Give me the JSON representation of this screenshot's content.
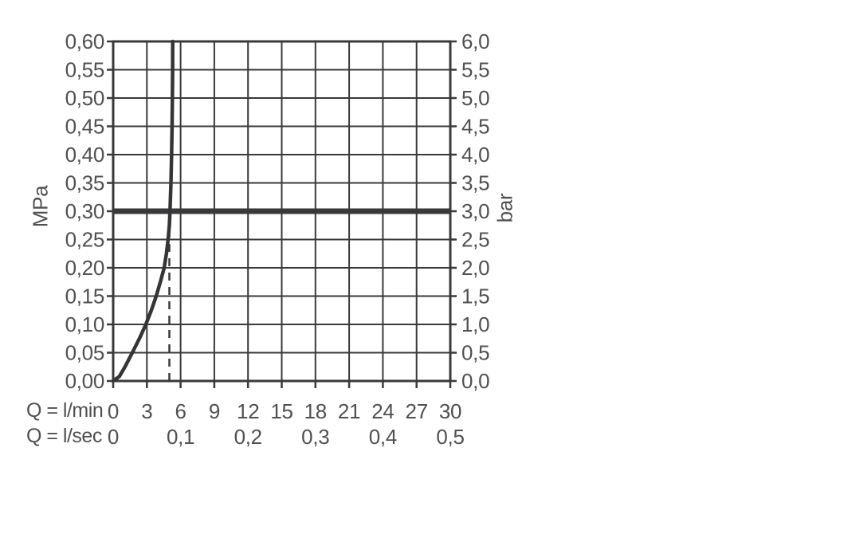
{
  "chart_data": {
    "type": "line",
    "title": "",
    "x_axis": {
      "xlim": [
        0,
        30
      ],
      "grid_step_lmin": 3,
      "rows": [
        {
          "label": "Q = l/min",
          "ticks": [
            {
              "x": 0,
              "t": "0"
            },
            {
              "x": 3,
              "t": "3"
            },
            {
              "x": 6,
              "t": "6"
            },
            {
              "x": 9,
              "t": "9"
            },
            {
              "x": 12,
              "t": "12"
            },
            {
              "x": 15,
              "t": "15"
            },
            {
              "x": 18,
              "t": "18"
            },
            {
              "x": 21,
              "t": "21"
            },
            {
              "x": 24,
              "t": "24"
            },
            {
              "x": 27,
              "t": "27"
            },
            {
              "x": 30,
              "t": "30"
            }
          ]
        },
        {
          "label": "Q = l/sec",
          "ticks": [
            {
              "x": 0,
              "t": "0"
            },
            {
              "x": 6,
              "t": "0,1"
            },
            {
              "x": 12,
              "t": "0,2"
            },
            {
              "x": 18,
              "t": "0,3"
            },
            {
              "x": 24,
              "t": "0,4"
            },
            {
              "x": 30,
              "t": "0,5"
            }
          ]
        }
      ]
    },
    "y_axis_left": {
      "label": "MPa",
      "ylim": [
        0,
        0.6
      ],
      "step": 0.05,
      "tick_labels": [
        "0,00",
        "0,05",
        "0,10",
        "0,15",
        "0,20",
        "0,25",
        "0,30",
        "0,35",
        "0,40",
        "0,45",
        "0,50",
        "0,55",
        "0,60"
      ]
    },
    "y_axis_right": {
      "label": "bar",
      "tick_labels": [
        "0,0",
        "0,5",
        "1,0",
        "1,5",
        "2,0",
        "2,5",
        "3,0",
        "3,5",
        "4,0",
        "4,5",
        "5,0",
        "5,5",
        "6,0"
      ]
    },
    "series": [
      {
        "name": "flow-rate-curve",
        "points": [
          [
            0,
            0
          ],
          [
            0.55,
            0.008
          ],
          [
            1.05,
            0.025
          ],
          [
            1.7,
            0.05
          ],
          [
            2.33,
            0.075
          ],
          [
            2.91,
            0.1
          ],
          [
            3.4,
            0.125
          ],
          [
            3.83,
            0.15
          ],
          [
            4.2,
            0.175
          ],
          [
            4.54,
            0.2
          ],
          [
            4.74,
            0.225
          ],
          [
            4.89,
            0.25
          ],
          [
            5.0,
            0.275
          ],
          [
            5.06,
            0.3
          ],
          [
            5.14,
            0.35
          ],
          [
            5.2,
            0.4
          ],
          [
            5.24,
            0.45
          ],
          [
            5.27,
            0.5
          ],
          [
            5.29,
            0.55
          ],
          [
            5.3,
            0.6
          ]
        ]
      }
    ],
    "reference_line": {
      "mpa": 0.3,
      "bar": 3.0
    },
    "marker_line": {
      "x_lmin": 5.0,
      "top_mpa": 0.27,
      "style": "dashed"
    },
    "grid": true,
    "legend": "none",
    "colors": {
      "grid_line": "#39393b",
      "curve": "#353537",
      "text": "#505052",
      "background": "#ffffff"
    }
  }
}
